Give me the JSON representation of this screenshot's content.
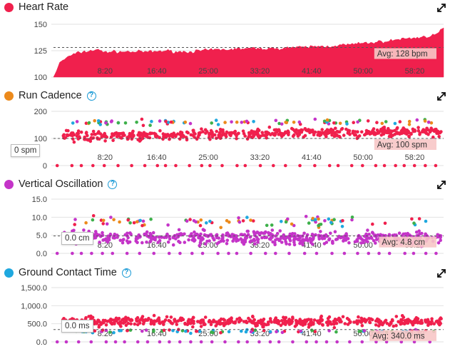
{
  "colors": {
    "red": "#f0204d",
    "orange": "#ec8a1c",
    "green": "#3db04a",
    "blue": "#1fa8df",
    "purple": "#c434c8",
    "avg_fill": "#f7c6c6"
  },
  "icons": {
    "expand": "expand-icon",
    "help": "help-circle-icon"
  },
  "panels": [
    {
      "id": "heart-rate",
      "title": "Heart Rate",
      "dot_color": "#f0204d",
      "has_help": false,
      "avg_label": "Avg: 128 bpm",
      "left_label": ""
    },
    {
      "id": "run-cadence",
      "title": "Run Cadence",
      "dot_color": "#ec8a1c",
      "has_help": true,
      "avg_label": "Avg: 100 spm",
      "left_label": "0 spm"
    },
    {
      "id": "vertical-oscillation",
      "title": "Vertical Oscillation",
      "dot_color": "#c434c8",
      "has_help": true,
      "avg_label": "Avg: 4.8 cm",
      "left_label": "0.0 cm"
    },
    {
      "id": "ground-contact-time",
      "title": "Ground Contact Time",
      "dot_color": "#1fa8df",
      "has_help": true,
      "avg_label": "Avg: 340.0 ms",
      "left_label": "0.0 ms"
    }
  ],
  "chart_data": [
    {
      "type": "area",
      "title": "Heart Rate",
      "x_ticks": [
        "8:20",
        "16:40",
        "25:00",
        "33:20",
        "41:40",
        "50:00",
        "58:20"
      ],
      "x_minutes": [
        8.33,
        16.67,
        25.0,
        33.33,
        41.67,
        50.0,
        58.33
      ],
      "x_range_minutes": [
        0,
        63
      ],
      "y_ticks": [
        "100",
        "125",
        "150"
      ],
      "ylim": [
        100,
        150
      ],
      "average": 128,
      "series": [
        {
          "x_minutes": [
            0,
            0.5,
            1,
            2,
            3,
            4,
            5,
            6,
            7,
            8,
            10,
            12,
            14,
            16,
            18,
            20,
            22,
            24,
            26,
            28,
            30,
            32,
            34,
            36,
            38,
            40,
            42,
            44,
            46,
            48,
            50,
            52,
            54,
            56,
            58,
            60,
            62,
            63
          ],
          "values": [
            100,
            106,
            114,
            118,
            121,
            123,
            124,
            125,
            126,
            124,
            124,
            124,
            124,
            124,
            125,
            124,
            124,
            125,
            126,
            126,
            127,
            127,
            127,
            127,
            128,
            128,
            129,
            129,
            130,
            131,
            132,
            133,
            134,
            136,
            137,
            138,
            141,
            146
          ]
        }
      ]
    },
    {
      "type": "scatter",
      "title": "Run Cadence",
      "x_ticks": [
        "8:20",
        "16:40",
        "25:00",
        "33:20",
        "41:40",
        "50:00",
        "58:20"
      ],
      "y_ticks": [
        "0",
        "100",
        "200"
      ],
      "ylim": [
        0,
        200
      ],
      "average": 100,
      "series": [
        {
          "name": "red",
          "typical": 105,
          "spread": 30
        },
        {
          "name": "outliers-high",
          "typical": 160,
          "spread": 25
        },
        {
          "name": "zero",
          "typical": 0,
          "spread": 0
        }
      ]
    },
    {
      "type": "scatter",
      "title": "Vertical Oscillation",
      "x_ticks": [
        "8:20",
        "16:40",
        "25:00",
        "33:20",
        "41:40",
        "50:00",
        "58:20"
      ],
      "y_ticks": [
        "0.0",
        "5.0",
        "10.0",
        "15.0"
      ],
      "ylim": [
        0,
        15
      ],
      "average": 4.8,
      "series": [
        {
          "name": "purple",
          "typical": 4.5,
          "spread": 2.5
        },
        {
          "name": "outliers-high",
          "typical": 9,
          "spread": 3
        },
        {
          "name": "zero",
          "typical": 0,
          "spread": 0
        }
      ]
    },
    {
      "type": "scatter",
      "title": "Ground Contact Time",
      "x_ticks": [
        "8:20",
        "16:40",
        "25:00",
        "33:20",
        "41:40",
        "50:00",
        "58:20"
      ],
      "y_ticks": [
        "0.0",
        "500.0",
        "1,000.0",
        "1,500.0"
      ],
      "ylim": [
        0,
        1500
      ],
      "average": 340.0,
      "series": [
        {
          "name": "red",
          "typical": 560,
          "spread": 200
        },
        {
          "name": "outliers-low",
          "typical": 250,
          "spread": 80
        },
        {
          "name": "zero",
          "typical": 0,
          "spread": 0
        }
      ]
    }
  ]
}
